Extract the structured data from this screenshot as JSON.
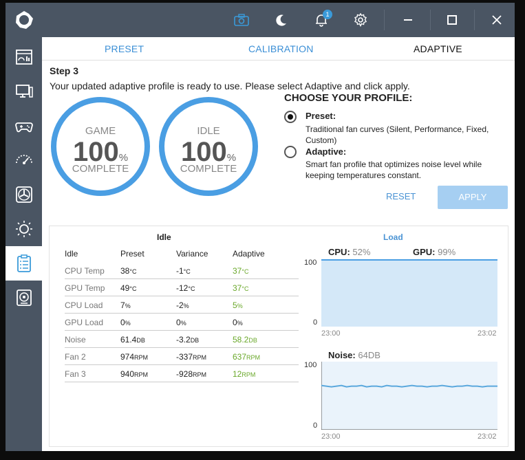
{
  "colors": {
    "accent": "#4a9ee3",
    "sidebar": "#4a5563",
    "green": "#6aa82a",
    "chart_fill": "#d4e8f8",
    "chart_line": "#5aa8dd"
  },
  "sidebar": {
    "items": [
      "dashboard-icon",
      "monitor-icon",
      "gamepad-icon",
      "speedometer-icon",
      "fan-icon",
      "brightness-icon",
      "clipboard-list-icon",
      "speaker-icon"
    ]
  },
  "titlebar": {
    "notification_count": "1"
  },
  "tabs": [
    {
      "label": "PRESET"
    },
    {
      "label": "CALIBRATION"
    },
    {
      "label": "ADAPTIVE"
    }
  ],
  "step": {
    "title": "Step 3",
    "subtitle": "Your updated adaptive profile is ready to use. Please select Adaptive and click apply."
  },
  "rings": {
    "game": {
      "label": "GAME",
      "value": "100",
      "unit": "%",
      "status": "COMPLETE"
    },
    "idle": {
      "label": "IDLE",
      "value": "100",
      "unit": "%",
      "status": "COMPLETE"
    }
  },
  "profile": {
    "heading": "CHOOSE YOUR PROFILE:",
    "preset_title": "Preset:",
    "preset_desc": "Traditional fan curves (Silent, Performance, Fixed, Custom)",
    "adaptive_title": "Adaptive:",
    "adaptive_desc": "Smart fan profile that optimizes noise level while keeping temperatures constant.",
    "selected": "preset"
  },
  "buttons": {
    "reset": "RESET",
    "apply": "APPLY"
  },
  "idle_table": {
    "title": "Idle",
    "headers": [
      "Idle",
      "Preset",
      "Variance",
      "Adaptive"
    ],
    "rows": [
      {
        "name": "CPU Temp",
        "preset": "38",
        "preset_unit": "°C",
        "variance": "-1",
        "variance_unit": "°C",
        "adaptive": "37",
        "adaptive_unit": "°C"
      },
      {
        "name": "GPU Temp",
        "preset": "49",
        "preset_unit": "°C",
        "variance": "-12",
        "variance_unit": "°C",
        "adaptive": "37",
        "adaptive_unit": "°C"
      },
      {
        "name": "CPU Load",
        "preset": "7",
        "preset_unit": "%",
        "variance": "-2",
        "variance_unit": "%",
        "adaptive": "5",
        "adaptive_unit": "%"
      },
      {
        "name": "GPU Load",
        "preset": "0",
        "preset_unit": "%",
        "variance": "0",
        "variance_unit": "%",
        "adaptive": "0",
        "adaptive_unit": "%"
      },
      {
        "name": "Noise",
        "preset": "61.4",
        "preset_unit": "DB",
        "variance": "-3.2",
        "variance_unit": "DB",
        "adaptive": "58.2",
        "adaptive_unit": "DB"
      },
      {
        "name": "Fan 2",
        "preset": "974",
        "preset_unit": "RPM",
        "variance": "-337",
        "variance_unit": "RPM",
        "adaptive": "637",
        "adaptive_unit": "RPM"
      },
      {
        "name": "Fan 3",
        "preset": "940",
        "preset_unit": "RPM",
        "variance": "-928",
        "variance_unit": "RPM",
        "adaptive": "12",
        "adaptive_unit": "RPM"
      }
    ]
  },
  "load": {
    "title": "Load",
    "cpu_label": "CPU:",
    "cpu_value": "52%",
    "gpu_label": "GPU:",
    "gpu_value": "99%",
    "noise_label": "Noise:",
    "noise_value": "64DB"
  },
  "chart_data": [
    {
      "type": "area",
      "ylim": [
        0,
        100
      ],
      "yticks": [
        "100",
        "0"
      ],
      "xticks": [
        "23:00",
        "23:02"
      ],
      "series": [
        {
          "name": "CPU",
          "values": [
            52,
            51,
            52,
            53,
            52,
            51,
            52,
            52,
            53,
            52,
            51,
            52,
            57,
            52,
            51,
            52,
            52,
            53,
            52,
            51,
            52,
            52,
            53,
            55,
            52,
            51,
            52,
            52,
            53,
            52,
            51,
            52,
            52,
            53,
            52,
            52
          ]
        },
        {
          "name": "GPU",
          "values": [
            99,
            99,
            99,
            99,
            99,
            99,
            99,
            99,
            99,
            99,
            99,
            99,
            99,
            99,
            99,
            99,
            99,
            99,
            99,
            99,
            99,
            99,
            99,
            99,
            99,
            99,
            99,
            99,
            99,
            99,
            99,
            99,
            99,
            99,
            99,
            99
          ]
        }
      ]
    },
    {
      "type": "line",
      "ylim": [
        0,
        100
      ],
      "yticks": [
        "100",
        "0"
      ],
      "xticks": [
        "23:00",
        "23:02"
      ],
      "series": [
        {
          "name": "Noise",
          "values": [
            65,
            64,
            63,
            64,
            65,
            63,
            64,
            64,
            65,
            63,
            64,
            64,
            63,
            65,
            64,
            64,
            63,
            64,
            65,
            64,
            64,
            63,
            64,
            64,
            65,
            64,
            63,
            64,
            64,
            65,
            64,
            64,
            63,
            64,
            64,
            64
          ]
        }
      ]
    }
  ]
}
